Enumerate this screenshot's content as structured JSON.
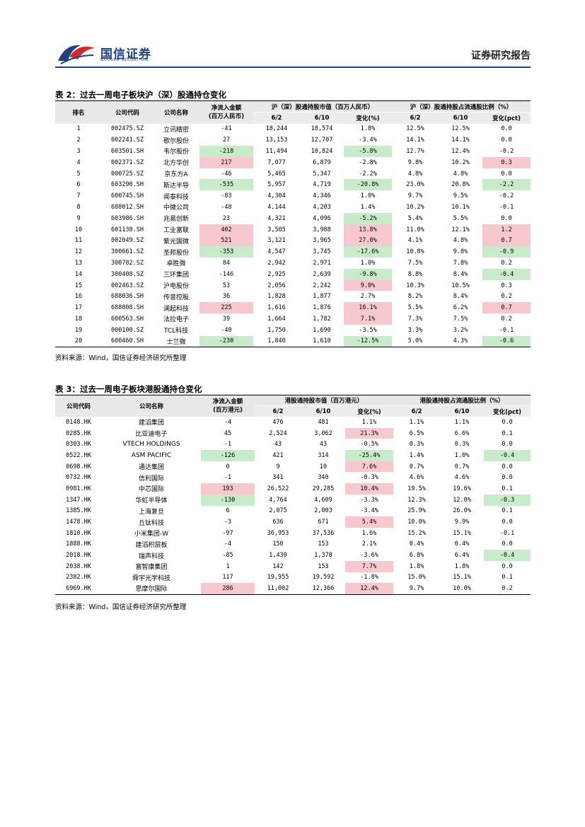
{
  "header": {
    "brand_cn": "国信证券",
    "brand_en": "GUOSEN SECURITIES",
    "report_title": "证券研究报告"
  },
  "table2": {
    "caption": "表 2：过去一周电子板块沪（深）股通持仓变化",
    "headers": {
      "rank": "排名",
      "code": "公司代码",
      "name": "公司名称",
      "flow": "净流入金额",
      "flow_unit": "(百万人民币)",
      "value_group": "沪（深）股通持股市值（百万人民币）",
      "ratio_group": "沪（深）股通持股占流通股比例（%）",
      "d1": "6/2",
      "d2": "6/10",
      "chg_pct": "变化(%)",
      "chg_pct_pp": "变化(pct)"
    },
    "rows": [
      {
        "rank": "1",
        "code": "002475.SZ",
        "name": "立讯精密",
        "flow": "-41",
        "v1": "18,244",
        "v2": "18,574",
        "vc": "1.8%",
        "r1": "12.5%",
        "r2": "12.5%",
        "rc": "0.0",
        "flow_hl": "",
        "vc_hl": "",
        "rc_hl": ""
      },
      {
        "rank": "2",
        "code": "002241.SZ",
        "name": "歌尔股份",
        "flow": "27",
        "v1": "13,153",
        "v2": "12,707",
        "vc": "-3.4%",
        "r1": "14.1%",
        "r2": "14.1%",
        "rc": "0.0",
        "flow_hl": "",
        "vc_hl": "",
        "rc_hl": ""
      },
      {
        "rank": "3",
        "code": "603501.SH",
        "name": "韦尔股份",
        "flow": "-218",
        "v1": "11,494",
        "v2": "10,824",
        "vc": "-5.8%",
        "r1": "12.7%",
        "r2": "12.4%",
        "rc": "-0.2",
        "flow_hl": "g",
        "vc_hl": "g",
        "rc_hl": ""
      },
      {
        "rank": "4",
        "code": "002371.SZ",
        "name": "北方华创",
        "flow": "217",
        "v1": "7,077",
        "v2": "6,879",
        "vc": "-2.8%",
        "r1": "9.8%",
        "r2": "10.2%",
        "rc": "0.3",
        "flow_hl": "r",
        "vc_hl": "",
        "rc_hl": "r"
      },
      {
        "rank": "5",
        "code": "000725.SZ",
        "name": "京东方A",
        "flow": "-46",
        "v1": "5,465",
        "v2": "5,347",
        "vc": "-2.2%",
        "r1": "4.8%",
        "r2": "4.8%",
        "rc": "0.0",
        "flow_hl": "",
        "vc_hl": "",
        "rc_hl": ""
      },
      {
        "rank": "6",
        "code": "603290.SH",
        "name": "斯达半导",
        "flow": "-535",
        "v1": "5,957",
        "v2": "4,719",
        "vc": "-20.8%",
        "r1": "23.0%",
        "r2": "20.8%",
        "rc": "-2.2",
        "flow_hl": "g",
        "vc_hl": "g",
        "rc_hl": "g"
      },
      {
        "rank": "7",
        "code": "600745.SH",
        "name": "闻泰科技",
        "flow": "-83",
        "v1": "4,304",
        "v2": "4,346",
        "vc": "1.0%",
        "r1": "9.7%",
        "r2": "9.5%",
        "rc": "-0.2",
        "flow_hl": "",
        "vc_hl": "",
        "rc_hl": ""
      },
      {
        "rank": "8",
        "code": "688012.SH",
        "name": "中微公司",
        "flow": "-48",
        "v1": "4,144",
        "v2": "4,203",
        "vc": "1.4%",
        "r1": "10.2%",
        "r2": "10.1%",
        "rc": "-0.1",
        "flow_hl": "",
        "vc_hl": "",
        "rc_hl": ""
      },
      {
        "rank": "9",
        "code": "603986.SH",
        "name": "兆易创新",
        "flow": "23",
        "v1": "4,321",
        "v2": "4,096",
        "vc": "-5.2%",
        "r1": "5.4%",
        "r2": "5.5%",
        "rc": "0.0",
        "flow_hl": "",
        "vc_hl": "g",
        "rc_hl": ""
      },
      {
        "rank": "10",
        "code": "601138.SH",
        "name": "工业富联",
        "flow": "402",
        "v1": "3,505",
        "v2": "3,988",
        "vc": "13.8%",
        "r1": "11.0%",
        "r2": "12.1%",
        "rc": "1.2",
        "flow_hl": "r",
        "vc_hl": "r",
        "rc_hl": "r"
      },
      {
        "rank": "11",
        "code": "002049.SZ",
        "name": "紫光国微",
        "flow": "521",
        "v1": "3,121",
        "v2": "3,965",
        "vc": "27.0%",
        "r1": "4.1%",
        "r2": "4.8%",
        "rc": "0.7",
        "flow_hl": "r",
        "vc_hl": "r",
        "rc_hl": "r"
      },
      {
        "rank": "12",
        "code": "300661.SZ",
        "name": "圣邦股份",
        "flow": "-353",
        "v1": "4,547",
        "v2": "3,745",
        "vc": "-17.6%",
        "r1": "10.8%",
        "r2": "9.8%",
        "rc": "-0.9",
        "flow_hl": "g",
        "vc_hl": "g",
        "rc_hl": "g"
      },
      {
        "rank": "13",
        "code": "300782.SZ",
        "name": "卓胜微",
        "flow": "84",
        "v1": "2,942",
        "v2": "2,971",
        "vc": "1.0%",
        "r1": "7.5%",
        "r2": "7.8%",
        "rc": "0.2",
        "flow_hl": "",
        "vc_hl": "",
        "rc_hl": ""
      },
      {
        "rank": "14",
        "code": "300408.SZ",
        "name": "三环集团",
        "flow": "-146",
        "v1": "2,925",
        "v2": "2,639",
        "vc": "-9.8%",
        "r1": "8.8%",
        "r2": "8.4%",
        "rc": "-0.4",
        "flow_hl": "",
        "vc_hl": "g",
        "rc_hl": "g"
      },
      {
        "rank": "15",
        "code": "002463.SZ",
        "name": "沪电股份",
        "flow": "53",
        "v1": "2,056",
        "v2": "2,242",
        "vc": "9.0%",
        "r1": "10.3%",
        "r2": "10.5%",
        "rc": "0.3",
        "flow_hl": "",
        "vc_hl": "r",
        "rc_hl": ""
      },
      {
        "rank": "16",
        "code": "688036.SH",
        "name": "传音控股",
        "flow": "36",
        "v1": "1,828",
        "v2": "1,877",
        "vc": "2.7%",
        "r1": "8.2%",
        "r2": "8.4%",
        "rc": "0.2",
        "flow_hl": "",
        "vc_hl": "",
        "rc_hl": ""
      },
      {
        "rank": "17",
        "code": "688008.SH",
        "name": "澜起科技",
        "flow": "225",
        "v1": "1,616",
        "v2": "1,876",
        "vc": "16.1%",
        "r1": "5.5%",
        "r2": "6.2%",
        "rc": "0.7",
        "flow_hl": "r",
        "vc_hl": "r",
        "rc_hl": "r"
      },
      {
        "rank": "18",
        "code": "600563.SH",
        "name": "法拉电子",
        "flow": "39",
        "v1": "1,664",
        "v2": "1,782",
        "vc": "7.1%",
        "r1": "7.3%",
        "r2": "7.5%",
        "rc": "0.2",
        "flow_hl": "",
        "vc_hl": "r",
        "rc_hl": ""
      },
      {
        "rank": "19",
        "code": "000100.SZ",
        "name": "TCL科技",
        "flow": "-40",
        "v1": "1,750",
        "v2": "1,690",
        "vc": "-3.5%",
        "r1": "3.3%",
        "r2": "3.2%",
        "rc": "-0.1",
        "flow_hl": "",
        "vc_hl": "",
        "rc_hl": ""
      },
      {
        "rank": "20",
        "code": "600460.SH",
        "name": "士兰微",
        "flow": "-230",
        "v1": "1,840",
        "v2": "1,610",
        "vc": "-12.5%",
        "r1": "5.0%",
        "r2": "4.3%",
        "rc": "-0.6",
        "flow_hl": "g",
        "vc_hl": "g",
        "rc_hl": "g"
      }
    ],
    "source": "资料来源：Wind，国信证券经济研究所整理"
  },
  "table3": {
    "caption": "表 3：过去一周电子板块港股通持仓变化",
    "headers": {
      "code": "公司代码",
      "name": "公司名称",
      "flow": "净流入金额",
      "flow_unit": "(百万港元)",
      "value_group": "港股通持股市值（百万港元）",
      "ratio_group": "港股通持股占流通股比例（%）",
      "d1": "6/2",
      "d2": "6/10",
      "chg_pct": "变化(%)",
      "chg_pct_pp": "变化(pct)"
    },
    "rows": [
      {
        "code": "0148.HK",
        "name": "建滔集团",
        "flow": "-4",
        "v1": "476",
        "v2": "481",
        "vc": "1.1%",
        "r1": "1.1%",
        "r2": "1.1%",
        "rc": "0.0",
        "flow_hl": "",
        "vc_hl": "",
        "rc_hl": ""
      },
      {
        "code": "0285.HK",
        "name": "比亚迪电子",
        "flow": "45",
        "v1": "2,524",
        "v2": "3,062",
        "vc": "21.3%",
        "r1": "6.5%",
        "r2": "6.6%",
        "rc": "0.1",
        "flow_hl": "",
        "vc_hl": "r",
        "rc_hl": ""
      },
      {
        "code": "0303.HK",
        "name": "VTECH HOLDINGS",
        "flow": "-1",
        "v1": "43",
        "v2": "43",
        "vc": "-0.5%",
        "r1": "0.3%",
        "r2": "0.3%",
        "rc": "0.0",
        "flow_hl": "",
        "vc_hl": "",
        "rc_hl": ""
      },
      {
        "code": "0522.HK",
        "name": "ASM PACIFIC",
        "flow": "-126",
        "v1": "421",
        "v2": "314",
        "vc": "-25.4%",
        "r1": "1.4%",
        "r2": "1.0%",
        "rc": "-0.4",
        "flow_hl": "g",
        "vc_hl": "g",
        "rc_hl": "g"
      },
      {
        "code": "0698.HK",
        "name": "通达集团",
        "flow": "0",
        "v1": "9",
        "v2": "10",
        "vc": "7.6%",
        "r1": "0.7%",
        "r2": "0.7%",
        "rc": "0.0",
        "flow_hl": "",
        "vc_hl": "r",
        "rc_hl": ""
      },
      {
        "code": "0732.HK",
        "name": "信利国际",
        "flow": "-1",
        "v1": "341",
        "v2": "340",
        "vc": "-0.3%",
        "r1": "4.6%",
        "r2": "4.6%",
        "rc": "0.0",
        "flow_hl": "",
        "vc_hl": "",
        "rc_hl": ""
      },
      {
        "code": "0981.HK",
        "name": "中芯国际",
        "flow": "193",
        "v1": "26,522",
        "v2": "29,285",
        "vc": "10.4%",
        "r1": "19.5%",
        "r2": "19.6%",
        "rc": "0.1",
        "flow_hl": "r",
        "vc_hl": "r",
        "rc_hl": ""
      },
      {
        "code": "1347.HK",
        "name": "华虹半导体",
        "flow": "-130",
        "v1": "4,764",
        "v2": "4,609",
        "vc": "-3.3%",
        "r1": "12.3%",
        "r2": "12.0%",
        "rc": "-0.3",
        "flow_hl": "g",
        "vc_hl": "",
        "rc_hl": "g"
      },
      {
        "code": "1385.HK",
        "name": "上海复旦",
        "flow": "6",
        "v1": "2,075",
        "v2": "2,003",
        "vc": "-3.4%",
        "r1": "25.9%",
        "r2": "26.0%",
        "rc": "0.1",
        "flow_hl": "",
        "vc_hl": "",
        "rc_hl": ""
      },
      {
        "code": "1478.HK",
        "name": "丘钛科技",
        "flow": "-3",
        "v1": "636",
        "v2": "671",
        "vc": "5.4%",
        "r1": "10.0%",
        "r2": "9.9%",
        "rc": "0.0",
        "flow_hl": "",
        "vc_hl": "r",
        "rc_hl": ""
      },
      {
        "code": "1810.HK",
        "name": "小米集团-W",
        "flow": "-97",
        "v1": "36,953",
        "v2": "37,536",
        "vc": "1.6%",
        "r1": "15.2%",
        "r2": "15.1%",
        "rc": "-0.1",
        "flow_hl": "",
        "vc_hl": "",
        "rc_hl": ""
      },
      {
        "code": "1888.HK",
        "name": "建滔积层板",
        "flow": "-4",
        "v1": "150",
        "v2": "153",
        "vc": "2.1%",
        "r1": "0.4%",
        "r2": "0.4%",
        "rc": "0.0",
        "flow_hl": "",
        "vc_hl": "",
        "rc_hl": ""
      },
      {
        "code": "2018.HK",
        "name": "瑞声科技",
        "flow": "-85",
        "v1": "1,430",
        "v2": "1,378",
        "vc": "-3.6%",
        "r1": "6.8%",
        "r2": "6.4%",
        "rc": "-0.4",
        "flow_hl": "",
        "vc_hl": "",
        "rc_hl": "g"
      },
      {
        "code": "2038.HK",
        "name": "富智康集团",
        "flow": "1",
        "v1": "142",
        "v2": "153",
        "vc": "7.7%",
        "r1": "1.8%",
        "r2": "1.8%",
        "rc": "0.0",
        "flow_hl": "",
        "vc_hl": "r",
        "rc_hl": ""
      },
      {
        "code": "2382.HK",
        "name": "舜宇光学科技",
        "flow": "117",
        "v1": "19,955",
        "v2": "19,592",
        "vc": "-1.8%",
        "r1": "15.0%",
        "r2": "15.1%",
        "rc": "0.1",
        "flow_hl": "",
        "vc_hl": "",
        "rc_hl": ""
      },
      {
        "code": "6969.HK",
        "name": "思摩尔国际",
        "flow": "286",
        "v1": "11,002",
        "v2": "12,366",
        "vc": "12.4%",
        "r1": "9.7%",
        "r2": "10.0%",
        "rc": "0.2",
        "flow_hl": "r",
        "vc_hl": "r",
        "rc_hl": ""
      }
    ],
    "source": "资料来源：Wind，国信证券经济研究所整理"
  }
}
